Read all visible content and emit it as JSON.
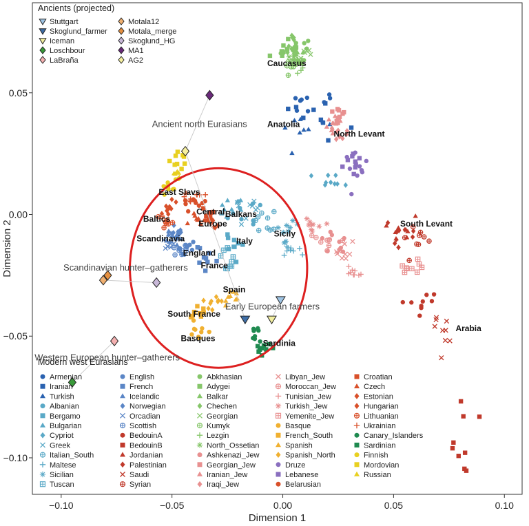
{
  "chart_data": {
    "type": "scatter",
    "xlabel": "Dimension 1",
    "ylabel": "Dimension 2",
    "xlim": [
      -0.113,
      0.108
    ],
    "ylim": [
      -0.115,
      0.087
    ],
    "xticks": [
      -0.1,
      -0.05,
      0.0,
      0.05,
      0.1
    ],
    "xtick_labels": [
      "−0.10",
      "−0.05",
      "0.00",
      "0.05",
      "0.10"
    ],
    "yticks": [
      -0.1,
      -0.05,
      0.0,
      0.05
    ],
    "ytick_labels": [
      "−0.10",
      "−0.05",
      "0.00",
      "0.05"
    ],
    "grid": false,
    "ancient_legend_title": "Ancients (projected)",
    "ancients": [
      {
        "name": "Stuttgart",
        "marker": "triangle-down",
        "fill": "#9ec4e4",
        "x": -0.001,
        "y": -0.035
      },
      {
        "name": "Skoglund_farmer",
        "marker": "triangle-down",
        "fill": "#3f6fa8",
        "x": -0.017,
        "y": -0.043
      },
      {
        "name": "Iceman",
        "marker": "triangle-down",
        "fill": "#f2eea0",
        "x": -0.005,
        "y": -0.043
      },
      {
        "name": "Loschbour",
        "marker": "diamond",
        "fill": "#3a9a3a",
        "x": -0.095,
        "y": -0.069
      },
      {
        "name": "LaBraña",
        "marker": "diamond",
        "fill": "#f4b0b0",
        "x": -0.076,
        "y": -0.052
      },
      {
        "name": "Motala12",
        "marker": "diamond",
        "fill": "#f0b070",
        "x": -0.081,
        "y": -0.027
      },
      {
        "name": "Motala_merge",
        "marker": "diamond",
        "fill": "#e69040",
        "x": -0.079,
        "y": -0.025
      },
      {
        "name": "Skoglund_HG",
        "marker": "diamond",
        "fill": "#c8b8d8",
        "x": -0.057,
        "y": -0.028
      },
      {
        "name": "MA1",
        "marker": "diamond",
        "fill": "#6a2a7a",
        "x": -0.033,
        "y": 0.049
      },
      {
        "name": "AG2",
        "marker": "diamond",
        "fill": "#f6f0a0",
        "x": -0.044,
        "y": 0.026
      }
    ],
    "ancient_group_labels": [
      {
        "text": "Ancient north Eurasians",
        "x": -0.059,
        "y": 0.036
      },
      {
        "text": "Scandinavian hunter–gatherers",
        "x": -0.099,
        "y": -0.023
      },
      {
        "text": "Early European farmers",
        "x": -0.026,
        "y": -0.039
      },
      {
        "text": "Western European hunter–gatherers",
        "x": -0.112,
        "y": -0.06
      }
    ],
    "region_labels": [
      {
        "text": "Caucasus",
        "x": -0.007,
        "y": 0.061
      },
      {
        "text": "Anatolia",
        "x": -0.007,
        "y": 0.036
      },
      {
        "text": "North Levant",
        "x": 0.023,
        "y": 0.032
      },
      {
        "text": "East Slavs",
        "x": -0.056,
        "y": 0.008
      },
      {
        "text": "Baltics",
        "x": -0.063,
        "y": -0.003
      },
      {
        "text": "Central",
        "x": -0.039,
        "y": 0.0
      },
      {
        "text": "Europe",
        "x": -0.038,
        "y": -0.005
      },
      {
        "text": "Balkans",
        "x": -0.026,
        "y": -0.001
      },
      {
        "text": "Scandinavia",
        "x": -0.066,
        "y": -0.011
      },
      {
        "text": "England",
        "x": -0.045,
        "y": -0.017
      },
      {
        "text": "France",
        "x": -0.037,
        "y": -0.022
      },
      {
        "text": "Italy",
        "x": -0.021,
        "y": -0.012
      },
      {
        "text": "Sicily",
        "x": -0.004,
        "y": -0.009
      },
      {
        "text": "Spain",
        "x": -0.027,
        "y": -0.032
      },
      {
        "text": "South France",
        "x": -0.052,
        "y": -0.042
      },
      {
        "text": "Basques",
        "x": -0.046,
        "y": -0.052
      },
      {
        "text": "Sardinia",
        "x": -0.009,
        "y": -0.054
      },
      {
        "text": "South Levant",
        "x": 0.053,
        "y": -0.005
      },
      {
        "text": "Arabia",
        "x": 0.078,
        "y": -0.048
      }
    ],
    "circle": {
      "cx": -0.029,
      "cy": -0.022,
      "rx": 0.04,
      "ry": 0.041,
      "color": "#dd2020"
    },
    "modern_legend_title": "Modern west Eurasians",
    "modern_series": [
      {
        "name": "Armenian",
        "marker": "circle",
        "color": "#2a62b0",
        "center": [
          0.012,
          0.045
        ],
        "spread": [
          0.012,
          0.009
        ]
      },
      {
        "name": "Iranian",
        "marker": "square",
        "color": "#2a62b0",
        "center": [
          0.014,
          0.042
        ],
        "spread": [
          0.012,
          0.01
        ]
      },
      {
        "name": "Turkish",
        "marker": "triangle",
        "color": "#2a62b0",
        "center": [
          0.006,
          0.036
        ],
        "spread": [
          0.01,
          0.007
        ]
      },
      {
        "name": "Albanian",
        "marker": "circle",
        "color": "#5aa9c7",
        "center": [
          -0.018,
          0.0
        ],
        "spread": [
          0.006,
          0.005
        ]
      },
      {
        "name": "Bergamo",
        "marker": "square",
        "color": "#5aa9c7",
        "center": [
          -0.022,
          -0.013
        ],
        "spread": [
          0.005,
          0.005
        ]
      },
      {
        "name": "Bulgarian",
        "marker": "triangle",
        "color": "#5aa9c7",
        "center": [
          -0.022,
          0.002
        ],
        "spread": [
          0.005,
          0.004
        ]
      },
      {
        "name": "Cypriot",
        "marker": "diamond",
        "color": "#5aa9c7",
        "center": [
          0.021,
          0.012
        ],
        "spread": [
          0.006,
          0.005
        ]
      },
      {
        "name": "Greek",
        "marker": "x",
        "color": "#5aa9c7",
        "center": [
          -0.014,
          0.001
        ],
        "spread": [
          0.007,
          0.006
        ]
      },
      {
        "name": "Italian_South",
        "marker": "circle-plus",
        "color": "#5aa9c7",
        "center": [
          -0.008,
          -0.003
        ],
        "spread": [
          0.005,
          0.005
        ]
      },
      {
        "name": "Maltese",
        "marker": "plus",
        "color": "#5aa9c7",
        "center": [
          0.005,
          -0.015
        ],
        "spread": [
          0.004,
          0.003
        ]
      },
      {
        "name": "Sicilian",
        "marker": "asterisk",
        "color": "#5aa9c7",
        "center": [
          0.002,
          -0.007
        ],
        "spread": [
          0.005,
          0.004
        ]
      },
      {
        "name": "Tuscan",
        "marker": "square-plus",
        "color": "#5aa9c7",
        "center": [
          -0.024,
          -0.018
        ],
        "spread": [
          0.004,
          0.004
        ]
      },
      {
        "name": "English",
        "marker": "circle",
        "color": "#5b86c6",
        "center": [
          -0.044,
          -0.013
        ],
        "spread": [
          0.004,
          0.003
        ]
      },
      {
        "name": "French",
        "marker": "square",
        "color": "#5b86c6",
        "center": [
          -0.036,
          -0.018
        ],
        "spread": [
          0.006,
          0.004
        ]
      },
      {
        "name": "Icelandic",
        "marker": "triangle",
        "color": "#5b86c6",
        "center": [
          -0.05,
          -0.01
        ],
        "spread": [
          0.004,
          0.003
        ]
      },
      {
        "name": "Norwegian",
        "marker": "diamond",
        "color": "#5b86c6",
        "center": [
          -0.047,
          -0.008
        ],
        "spread": [
          0.004,
          0.003
        ]
      },
      {
        "name": "Orcadian",
        "marker": "x",
        "color": "#5b86c6",
        "center": [
          -0.052,
          -0.012
        ],
        "spread": [
          0.003,
          0.003
        ]
      },
      {
        "name": "Scottish",
        "marker": "circle-plus",
        "color": "#5b86c6",
        "center": [
          -0.046,
          -0.015
        ],
        "spread": [
          0.003,
          0.003
        ]
      },
      {
        "name": "BedouinA",
        "marker": "circle",
        "color": "#c0392b",
        "center": [
          0.066,
          -0.04
        ],
        "spread": [
          0.01,
          0.01
        ]
      },
      {
        "name": "BedouinB",
        "marker": "square",
        "color": "#c0392b",
        "center": [
          0.08,
          -0.088
        ],
        "spread": [
          0.006,
          0.014
        ]
      },
      {
        "name": "Jordanian",
        "marker": "triangle",
        "color": "#c0392b",
        "center": [
          0.054,
          -0.006
        ],
        "spread": [
          0.007,
          0.007
        ]
      },
      {
        "name": "Palestinian",
        "marker": "diamond",
        "color": "#c0392b",
        "center": [
          0.052,
          -0.008
        ],
        "spread": [
          0.008,
          0.006
        ]
      },
      {
        "name": "Saudi",
        "marker": "x",
        "color": "#c0392b",
        "center": [
          0.07,
          -0.05
        ],
        "spread": [
          0.008,
          0.01
        ]
      },
      {
        "name": "Syrian",
        "marker": "circle-plus",
        "color": "#c0392b",
        "center": [
          0.057,
          -0.01
        ],
        "spread": [
          0.008,
          0.01
        ]
      },
      {
        "name": "Abkhasian",
        "marker": "circle",
        "color": "#86c66a",
        "center": [
          0.006,
          0.068
        ],
        "spread": [
          0.006,
          0.006
        ]
      },
      {
        "name": "Adygei",
        "marker": "square",
        "color": "#86c66a",
        "center": [
          0.002,
          0.066
        ],
        "spread": [
          0.006,
          0.005
        ]
      },
      {
        "name": "Balkar",
        "marker": "triangle",
        "color": "#86c66a",
        "center": [
          0.007,
          0.064
        ],
        "spread": [
          0.004,
          0.004
        ]
      },
      {
        "name": "Chechen",
        "marker": "diamond",
        "color": "#86c66a",
        "center": [
          0.005,
          0.069
        ],
        "spread": [
          0.004,
          0.004
        ]
      },
      {
        "name": "Georgian",
        "marker": "x",
        "color": "#86c66a",
        "center": [
          0.009,
          0.066
        ],
        "spread": [
          0.004,
          0.004
        ]
      },
      {
        "name": "Kumyk",
        "marker": "circle-plus",
        "color": "#86c66a",
        "center": [
          0.004,
          0.062
        ],
        "spread": [
          0.004,
          0.004
        ]
      },
      {
        "name": "Lezgin",
        "marker": "plus",
        "color": "#86c66a",
        "center": [
          0.008,
          0.062
        ],
        "spread": [
          0.004,
          0.004
        ]
      },
      {
        "name": "North_Ossetian",
        "marker": "asterisk",
        "color": "#86c66a",
        "center": [
          0.005,
          0.067
        ],
        "spread": [
          0.004,
          0.004
        ]
      },
      {
        "name": "Ashkenazi_Jew",
        "marker": "circle",
        "color": "#e89090",
        "center": [
          0.022,
          -0.013
        ],
        "spread": [
          0.007,
          0.005
        ]
      },
      {
        "name": "Georgian_Jew",
        "marker": "square",
        "color": "#e89090",
        "center": [
          0.024,
          0.04
        ],
        "spread": [
          0.004,
          0.004
        ]
      },
      {
        "name": "Iranian_Jew",
        "marker": "triangle",
        "color": "#e89090",
        "center": [
          0.023,
          0.038
        ],
        "spread": [
          0.004,
          0.004
        ]
      },
      {
        "name": "Iraqi_Jew",
        "marker": "diamond",
        "color": "#e89090",
        "center": [
          0.026,
          0.034
        ],
        "spread": [
          0.004,
          0.004
        ]
      },
      {
        "name": "Libyan_Jew",
        "marker": "x",
        "color": "#e89090",
        "center": [
          0.028,
          -0.017
        ],
        "spread": [
          0.006,
          0.004
        ]
      },
      {
        "name": "Moroccan_Jew",
        "marker": "circle-plus",
        "color": "#e89090",
        "center": [
          0.019,
          -0.01
        ],
        "spread": [
          0.006,
          0.004
        ]
      },
      {
        "name": "Tunisian_Jew",
        "marker": "plus",
        "color": "#e89090",
        "center": [
          0.032,
          -0.024
        ],
        "spread": [
          0.005,
          0.004
        ]
      },
      {
        "name": "Turkish_Jew",
        "marker": "asterisk",
        "color": "#e89090",
        "center": [
          0.015,
          -0.005
        ],
        "spread": [
          0.005,
          0.004
        ]
      },
      {
        "name": "Yemenite_Jew",
        "marker": "square-plus",
        "color": "#e89090",
        "center": [
          0.058,
          -0.021
        ],
        "spread": [
          0.004,
          0.003
        ]
      },
      {
        "name": "Basque",
        "marker": "circle",
        "color": "#f0b030",
        "center": [
          -0.038,
          -0.048
        ],
        "spread": [
          0.004,
          0.005
        ]
      },
      {
        "name": "French_South",
        "marker": "square",
        "color": "#f0b030",
        "center": [
          -0.037,
          -0.04
        ],
        "spread": [
          0.004,
          0.004
        ]
      },
      {
        "name": "Spanish",
        "marker": "triangle",
        "color": "#f0b030",
        "center": [
          -0.025,
          -0.033
        ],
        "spread": [
          0.006,
          0.005
        ]
      },
      {
        "name": "Spanish_North",
        "marker": "diamond",
        "color": "#f0b030",
        "center": [
          -0.03,
          -0.036
        ],
        "spread": [
          0.004,
          0.004
        ]
      },
      {
        "name": "Druze",
        "marker": "circle",
        "color": "#8a6fbf",
        "center": [
          0.032,
          0.018
        ],
        "spread": [
          0.005,
          0.009
        ]
      },
      {
        "name": "Lebanese",
        "marker": "square",
        "color": "#8a6fbf",
        "center": [
          0.031,
          0.022
        ],
        "spread": [
          0.004,
          0.006
        ]
      },
      {
        "name": "Belarusian",
        "marker": "circle",
        "color": "#d9502a",
        "center": [
          -0.04,
          0.004
        ],
        "spread": [
          0.005,
          0.003
        ]
      },
      {
        "name": "Croatian",
        "marker": "square",
        "color": "#d9502a",
        "center": [
          -0.034,
          0.0
        ],
        "spread": [
          0.004,
          0.003
        ]
      },
      {
        "name": "Czech",
        "marker": "triangle",
        "color": "#d9502a",
        "center": [
          -0.038,
          -0.002
        ],
        "spread": [
          0.004,
          0.003
        ]
      },
      {
        "name": "Estonian",
        "marker": "diamond",
        "color": "#d9502a",
        "center": [
          -0.052,
          0.003
        ],
        "spread": [
          0.004,
          0.003
        ]
      },
      {
        "name": "Hungarian",
        "marker": "diamond",
        "color": "#d9502a",
        "center": [
          -0.032,
          -0.003
        ],
        "spread": [
          0.004,
          0.003
        ]
      },
      {
        "name": "Lithuanian",
        "marker": "circle-plus",
        "color": "#d9502a",
        "center": [
          -0.054,
          -0.002
        ],
        "spread": [
          0.004,
          0.003
        ]
      },
      {
        "name": "Ukrainian",
        "marker": "plus",
        "color": "#d9502a",
        "center": [
          -0.04,
          0.008
        ],
        "spread": [
          0.005,
          0.003
        ]
      },
      {
        "name": "Canary_Islanders",
        "marker": "circle",
        "color": "#1f8a50",
        "center": [
          -0.014,
          -0.049
        ],
        "spread": [
          0.004,
          0.004
        ]
      },
      {
        "name": "Sardinian",
        "marker": "square",
        "color": "#1f8a50",
        "center": [
          -0.009,
          -0.055
        ],
        "spread": [
          0.004,
          0.004
        ]
      },
      {
        "name": "Finnish",
        "marker": "circle",
        "color": "#e8d020",
        "center": [
          -0.05,
          0.012
        ],
        "spread": [
          0.004,
          0.004
        ]
      },
      {
        "name": "Mordovian",
        "marker": "square",
        "color": "#e8d020",
        "center": [
          -0.047,
          0.022
        ],
        "spread": [
          0.004,
          0.004
        ]
      },
      {
        "name": "Russian",
        "marker": "triangle",
        "color": "#e8d020",
        "center": [
          -0.048,
          0.015
        ],
        "spread": [
          0.004,
          0.004
        ]
      }
    ]
  }
}
